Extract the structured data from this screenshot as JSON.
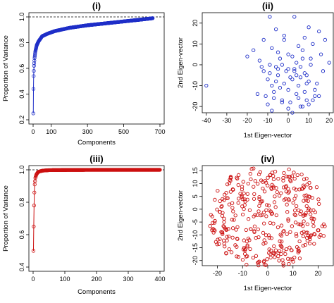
{
  "chart_data": [
    {
      "type": "line",
      "title": "(i)",
      "xlabel": "Components",
      "ylabel": "Proportion of Variance",
      "xlim": [
        0,
        700
      ],
      "ylim": [
        0.2,
        1.0
      ],
      "xticks": [
        0,
        100,
        300,
        500,
        700
      ],
      "yticks": [
        0.2,
        0.4,
        0.6,
        0.8,
        1.0
      ],
      "ytick_labels": [
        "0.2",
        "0.4",
        "0.6",
        "0.8",
        "1.0"
      ],
      "reference_line_y": 1.0,
      "color": "#1f2fc8",
      "n_points": 660,
      "key_points": [
        [
          1,
          0.25
        ],
        [
          2,
          0.44
        ],
        [
          3,
          0.54
        ],
        [
          5,
          0.62
        ],
        [
          8,
          0.68
        ],
        [
          12,
          0.73
        ],
        [
          20,
          0.78
        ],
        [
          30,
          0.81
        ],
        [
          50,
          0.85
        ],
        [
          80,
          0.87
        ],
        [
          120,
          0.89
        ],
        [
          200,
          0.915
        ],
        [
          300,
          0.935
        ],
        [
          400,
          0.95
        ],
        [
          500,
          0.965
        ],
        [
          600,
          0.98
        ],
        [
          660,
          0.99
        ]
      ]
    },
    {
      "type": "scatter",
      "title": "(ii)",
      "xlabel": "1st Eigen-vector",
      "ylabel": "2nd Eigen-vector",
      "xlim": [
        -42,
        22
      ],
      "ylim": [
        -23,
        25
      ],
      "xticks": [
        -40,
        -30,
        -20,
        -10,
        0,
        10,
        20
      ],
      "yticks": [
        -20,
        -10,
        0,
        10,
        20
      ],
      "color": "#1f2fc8",
      "x": [
        -40,
        -9,
        -6,
        3,
        10,
        8,
        -12,
        -2,
        15,
        18,
        -17,
        -20,
        -8,
        5,
        12,
        -5,
        0,
        7,
        -14,
        -4,
        2,
        11,
        16,
        20,
        -9,
        -6,
        -3,
        0,
        3,
        6,
        -9,
        -5,
        1,
        4,
        8,
        -12,
        -10,
        -6,
        -2,
        2,
        6,
        10,
        -8,
        -4,
        0,
        5,
        9,
        -7,
        4,
        8,
        13,
        15,
        -15,
        -11,
        -7,
        -3,
        1,
        5,
        9,
        13,
        -10,
        -3,
        6,
        12,
        -8,
        0,
        10,
        2,
        14,
        7,
        4,
        -5,
        -1,
        3,
        7,
        -13,
        9,
        11,
        17,
        -2
      ],
      "y": [
        -10,
        23,
        17,
        23,
        18,
        13,
        12,
        14,
        16,
        12,
        7,
        4,
        8,
        9,
        10,
        6,
        5,
        7,
        2,
        3,
        4,
        3,
        5,
        1,
        0,
        -1,
        0,
        -2,
        -3,
        -1,
        -4,
        -5,
        -6,
        -5,
        -4,
        -3,
        -7,
        -8,
        -9,
        -7,
        -6,
        -8,
        -10,
        -11,
        -12,
        -10,
        -9,
        -13,
        -14,
        -13,
        -12,
        -15,
        -14,
        -15,
        -16,
        -17,
        -18,
        -16,
        -17,
        -15,
        -19,
        -18,
        -20,
        -17,
        -22,
        -21,
        -19,
        -23,
        -9,
        -20,
        1,
        -2,
        -3,
        -2,
        3,
        -1,
        -5,
        0,
        -3,
        12
      ]
    },
    {
      "type": "line",
      "title": "(iii)",
      "xlabel": "Components",
      "ylabel": "Proportion of Variance",
      "xlim": [
        0,
        400
      ],
      "ylim": [
        0.4,
        1.0
      ],
      "xticks": [
        0,
        100,
        200,
        300,
        400
      ],
      "yticks": [
        0.4,
        0.6,
        0.8,
        1.0
      ],
      "ytick_labels": [
        "0.4",
        "0.6",
        "0.8",
        "1.0"
      ],
      "reference_line_y": 1.0,
      "color": "#cc1010",
      "n_points": 400,
      "key_points": [
        [
          1,
          0.5
        ],
        [
          2,
          0.65
        ],
        [
          3,
          0.78
        ],
        [
          4,
          0.86
        ],
        [
          5,
          0.91
        ],
        [
          7,
          0.95
        ],
        [
          10,
          0.97
        ],
        [
          15,
          0.985
        ],
        [
          20,
          0.99
        ],
        [
          30,
          0.995
        ],
        [
          50,
          0.998
        ],
        [
          100,
          0.999
        ],
        [
          200,
          1.0
        ],
        [
          400,
          1.0
        ]
      ]
    },
    {
      "type": "scatter",
      "title": "(iv)",
      "xlabel": "1st Eigen-vector",
      "ylabel": "2nd Eigen-vector",
      "xlim": [
        -26,
        26
      ],
      "ylim": [
        -22,
        17
      ],
      "xticks": [
        -20,
        -10,
        0,
        10,
        20
      ],
      "yticks": [
        -20,
        -15,
        -10,
        -5,
        0,
        5,
        10,
        15
      ],
      "color": "#cc1010",
      "n_points": 380,
      "distribution": "elliptical cloud centered near (0, 0), x span about -23 to 23, y span about -22 to 16"
    }
  ]
}
